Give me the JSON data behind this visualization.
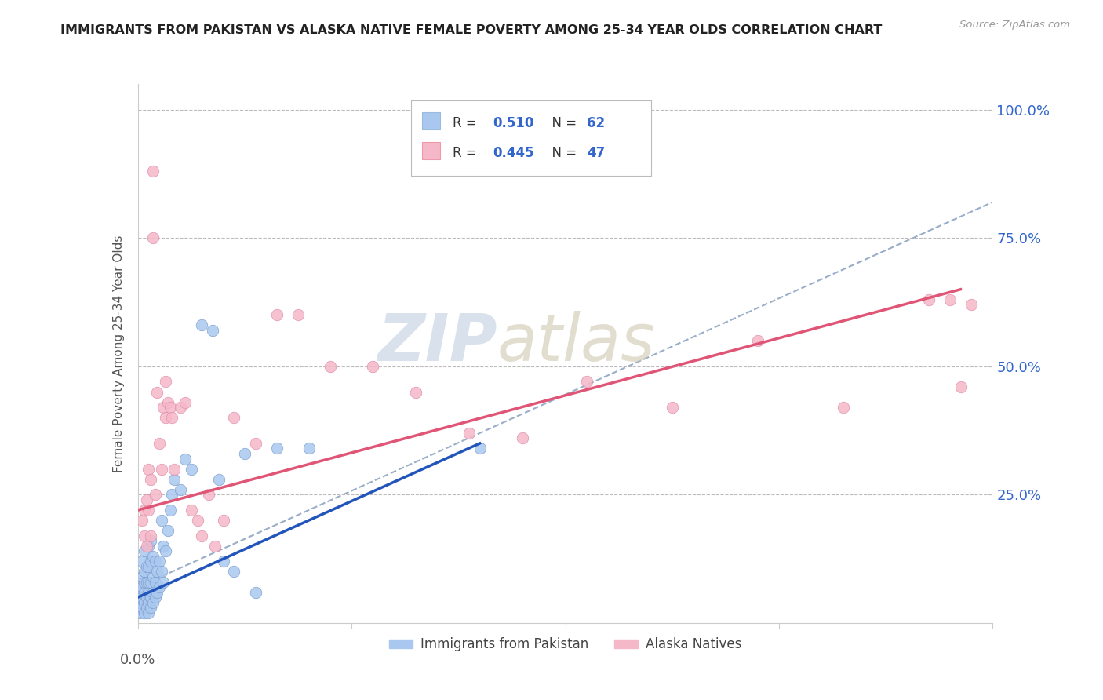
{
  "title": "IMMIGRANTS FROM PAKISTAN VS ALASKA NATIVE FEMALE POVERTY AMONG 25-34 YEAR OLDS CORRELATION CHART",
  "source": "Source: ZipAtlas.com",
  "ylabel": "Female Poverty Among 25-34 Year Olds",
  "right_yticks": [
    0.0,
    0.25,
    0.5,
    0.75,
    1.0
  ],
  "right_yticklabels": [
    "",
    "25.0%",
    "50.0%",
    "75.0%",
    "100.0%"
  ],
  "xlim": [
    0,
    0.4
  ],
  "ylim": [
    0,
    1.05
  ],
  "legend_r1_label": "R = ",
  "legend_r1_val": "0.510",
  "legend_n1_label": "N = ",
  "legend_n1_val": "62",
  "legend_r2_label": "R = ",
  "legend_r2_val": "0.445",
  "legend_n2_label": "N = ",
  "legend_n2_val": "47",
  "series1_color": "#aac8ef",
  "series2_color": "#f5b8c8",
  "trendline1_color": "#2255bb",
  "trendline2_color": "#e05575",
  "dashed_line_color": "#99aec8",
  "label_color": "#3366cc",
  "watermark_zip_color": "#c0d0e0",
  "watermark_atlas_color": "#d0c8b0",
  "background_color": "#ffffff",
  "grid_color": "#bbbbbb",
  "blue_points_x": [
    0.001,
    0.001,
    0.001,
    0.002,
    0.002,
    0.002,
    0.002,
    0.002,
    0.003,
    0.003,
    0.003,
    0.003,
    0.003,
    0.003,
    0.004,
    0.004,
    0.004,
    0.004,
    0.005,
    0.005,
    0.005,
    0.005,
    0.005,
    0.005,
    0.006,
    0.006,
    0.006,
    0.006,
    0.006,
    0.007,
    0.007,
    0.007,
    0.007,
    0.008,
    0.008,
    0.008,
    0.009,
    0.009,
    0.01,
    0.01,
    0.011,
    0.011,
    0.012,
    0.012,
    0.013,
    0.014,
    0.015,
    0.016,
    0.017,
    0.02,
    0.022,
    0.025,
    0.03,
    0.035,
    0.038,
    0.04,
    0.045,
    0.05,
    0.055,
    0.065,
    0.08,
    0.16
  ],
  "blue_points_y": [
    0.02,
    0.04,
    0.06,
    0.03,
    0.05,
    0.07,
    0.09,
    0.12,
    0.02,
    0.04,
    0.06,
    0.08,
    0.1,
    0.14,
    0.03,
    0.05,
    0.08,
    0.11,
    0.02,
    0.04,
    0.06,
    0.08,
    0.11,
    0.15,
    0.03,
    0.05,
    0.08,
    0.12,
    0.16,
    0.04,
    0.06,
    0.09,
    0.13,
    0.05,
    0.08,
    0.12,
    0.06,
    0.1,
    0.07,
    0.12,
    0.1,
    0.2,
    0.08,
    0.15,
    0.14,
    0.18,
    0.22,
    0.25,
    0.28,
    0.26,
    0.32,
    0.3,
    0.58,
    0.57,
    0.28,
    0.12,
    0.1,
    0.33,
    0.06,
    0.34,
    0.34,
    0.34
  ],
  "pink_points_x": [
    0.002,
    0.003,
    0.003,
    0.004,
    0.004,
    0.005,
    0.005,
    0.006,
    0.006,
    0.007,
    0.007,
    0.008,
    0.009,
    0.01,
    0.011,
    0.012,
    0.013,
    0.013,
    0.014,
    0.015,
    0.016,
    0.017,
    0.02,
    0.022,
    0.025,
    0.028,
    0.03,
    0.033,
    0.036,
    0.04,
    0.045,
    0.055,
    0.065,
    0.075,
    0.09,
    0.11,
    0.13,
    0.155,
    0.18,
    0.21,
    0.25,
    0.29,
    0.33,
    0.37,
    0.38,
    0.385,
    0.39
  ],
  "pink_points_y": [
    0.2,
    0.17,
    0.22,
    0.24,
    0.15,
    0.22,
    0.3,
    0.17,
    0.28,
    0.88,
    0.75,
    0.25,
    0.45,
    0.35,
    0.3,
    0.42,
    0.4,
    0.47,
    0.43,
    0.42,
    0.4,
    0.3,
    0.42,
    0.43,
    0.22,
    0.2,
    0.17,
    0.25,
    0.15,
    0.2,
    0.4,
    0.35,
    0.6,
    0.6,
    0.5,
    0.5,
    0.45,
    0.37,
    0.36,
    0.47,
    0.42,
    0.55,
    0.42,
    0.63,
    0.63,
    0.46,
    0.62
  ],
  "trendline1_x": [
    0.0,
    0.16
  ],
  "trendline1_y": [
    0.05,
    0.35
  ],
  "trendline2_x": [
    0.0,
    0.385
  ],
  "trendline2_y": [
    0.22,
    0.65
  ],
  "dashed_line_x": [
    0.0,
    0.4
  ],
  "dashed_line_y": [
    0.07,
    0.82
  ]
}
